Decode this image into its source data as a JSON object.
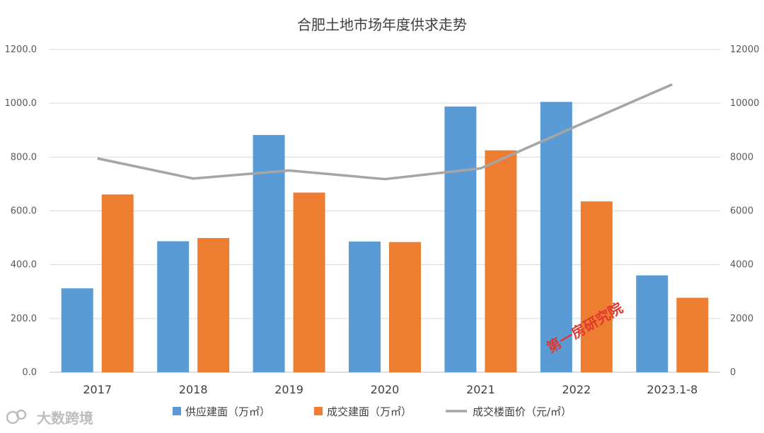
{
  "chart_data": {
    "type": "bar",
    "title": "合肥土地市场年度供求走势",
    "categories": [
      "2017",
      "2018",
      "2019",
      "2020",
      "2021",
      "2022",
      "2023.1-8"
    ],
    "series": [
      {
        "name": "供应建面（万㎡）",
        "kind": "bar",
        "axis": "left",
        "color": "#5b9bd5",
        "values": [
          312,
          487,
          882,
          486,
          988,
          1005,
          360
        ]
      },
      {
        "name": "成交建面（万㎡）",
        "kind": "bar",
        "axis": "left",
        "color": "#ed7d31",
        "values": [
          661,
          499,
          668,
          484,
          825,
          635,
          277
        ]
      },
      {
        "name": "成交楼面价（元/㎡）",
        "kind": "line",
        "axis": "right",
        "color": "#a5a5a5",
        "values": [
          7950,
          7200,
          7500,
          7180,
          7580,
          9150,
          10700
        ]
      }
    ],
    "y_left": {
      "min": 0,
      "max": 1200,
      "step": 200,
      "tick_labels": [
        "0.0",
        "200.0",
        "400.0",
        "600.0",
        "800.0",
        "1000.0",
        "1200.0"
      ]
    },
    "y_right": {
      "min": 0,
      "max": 12000,
      "step": 2000,
      "tick_labels": [
        "0",
        "2000",
        "4000",
        "6000",
        "8000",
        "10000",
        "12000"
      ]
    },
    "grid": true,
    "legend_position": "bottom"
  },
  "watermark": {
    "text": "第一房研究院",
    "color": "#e0382e"
  },
  "source_logo": {
    "text": "大数跨境",
    "icon": "logo-icon"
  }
}
